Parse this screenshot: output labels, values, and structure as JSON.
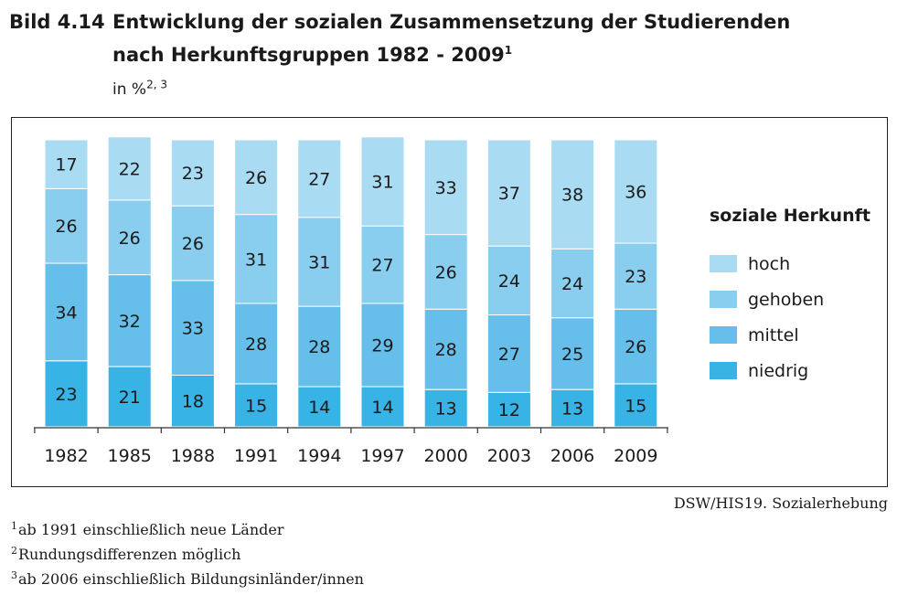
{
  "figure": {
    "number": "Bild 4.14",
    "title": "Entwicklung der sozialen Zusammensetzung der Studierenden nach Herkunftsgruppen 1982 - 2009",
    "title_sup": "1",
    "unit": "in %",
    "unit_sup": "2, 3"
  },
  "source": "DSW/HIS19. Sozialerhebung",
  "footnotes": [
    {
      "mark": "1",
      "text": "ab 1991 einschließlich neue Länder"
    },
    {
      "mark": "2",
      "text": "Rundungsdifferenzen möglich"
    },
    {
      "mark": "3",
      "text": "ab 2006 einschließlich Bildungsinländer/innen"
    }
  ],
  "legend": {
    "title": "soziale Herkunft",
    "items": [
      {
        "label": "hoch",
        "color": "#a9dcf3"
      },
      {
        "label": "gehoben",
        "color": "#89cdef"
      },
      {
        "label": "mittel",
        "color": "#66bfea"
      },
      {
        "label": "niedrig",
        "color": "#37b3e6"
      }
    ]
  },
  "chart_data": {
    "type": "bar",
    "stacked": true,
    "categories": [
      "1982",
      "1985",
      "1988",
      "1991",
      "1994",
      "1997",
      "2000",
      "2003",
      "2006",
      "2009"
    ],
    "series": [
      {
        "name": "niedrig",
        "color": "#37b3e6",
        "values": [
          23,
          21,
          18,
          15,
          14,
          14,
          13,
          12,
          13,
          15
        ]
      },
      {
        "name": "mittel",
        "color": "#66bfea",
        "values": [
          34,
          32,
          33,
          28,
          28,
          29,
          28,
          27,
          25,
          26
        ]
      },
      {
        "name": "gehoben",
        "color": "#89cdef",
        "values": [
          26,
          26,
          26,
          31,
          31,
          27,
          26,
          24,
          24,
          23
        ]
      },
      {
        "name": "hoch",
        "color": "#a9dcf3",
        "values": [
          17,
          22,
          23,
          26,
          27,
          31,
          33,
          37,
          38,
          36
        ]
      }
    ],
    "ylim": [
      0,
      100
    ],
    "legend_position": "right",
    "grid": false
  }
}
